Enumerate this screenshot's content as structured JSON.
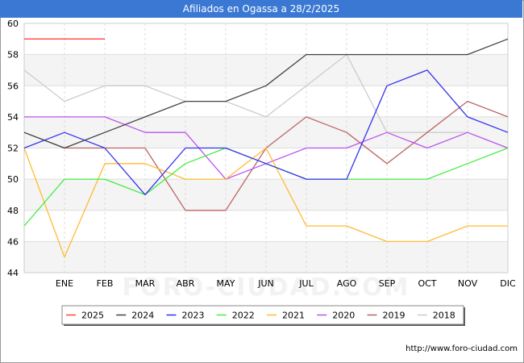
{
  "title": "Afiliados en Ogassa a 28/2/2025",
  "url": "http://www.foro-ciudad.com",
  "watermark": "FORO-CIUDAD.COM",
  "chart_data": {
    "type": "line",
    "title": "Afiliados en Ogassa a 28/2/2025",
    "xlabel": "",
    "ylabel": "",
    "categories": [
      "",
      "ENE",
      "FEB",
      "MAR",
      "ABR",
      "MAY",
      "JUN",
      "JUL",
      "AGO",
      "SEP",
      "OCT",
      "NOV",
      "DIC"
    ],
    "ylim": [
      44,
      60
    ],
    "yticks": [
      44,
      46,
      48,
      50,
      52,
      54,
      56,
      58,
      60
    ],
    "grid": true,
    "legend_position": "bottom",
    "series": [
      {
        "name": "2025",
        "color": "#ff4444",
        "values": [
          59,
          59,
          59,
          null,
          null,
          null,
          null,
          null,
          null,
          null,
          null,
          null,
          null
        ]
      },
      {
        "name": "2024",
        "color": "#444444",
        "values": [
          53,
          52,
          53,
          54,
          55,
          55,
          56,
          58,
          58,
          58,
          58,
          58,
          59
        ]
      },
      {
        "name": "2023",
        "color": "#3333ee",
        "values": [
          52,
          53,
          52,
          49,
          52,
          52,
          51,
          50,
          50,
          56,
          57,
          54,
          53
        ]
      },
      {
        "name": "2022",
        "color": "#44ee44",
        "values": [
          47,
          50,
          50,
          49,
          51,
          52,
          51,
          50,
          50,
          50,
          50,
          51,
          52
        ]
      },
      {
        "name": "2021",
        "color": "#ffbb33",
        "values": [
          52,
          45,
          51,
          51,
          50,
          50,
          52,
          47,
          47,
          46,
          46,
          47,
          47
        ]
      },
      {
        "name": "2020",
        "color": "#bb55ee",
        "values": [
          54,
          54,
          54,
          53,
          53,
          50,
          51,
          52,
          52,
          53,
          52,
          53,
          52
        ]
      },
      {
        "name": "2019",
        "color": "#bb6666",
        "values": [
          53,
          52,
          52,
          52,
          48,
          48,
          52,
          54,
          53,
          51,
          53,
          55,
          54
        ]
      },
      {
        "name": "2018",
        "color": "#cccccc",
        "values": [
          57,
          55,
          56,
          56,
          55,
          55,
          54,
          56,
          58,
          53,
          53,
          53,
          52
        ]
      }
    ]
  }
}
